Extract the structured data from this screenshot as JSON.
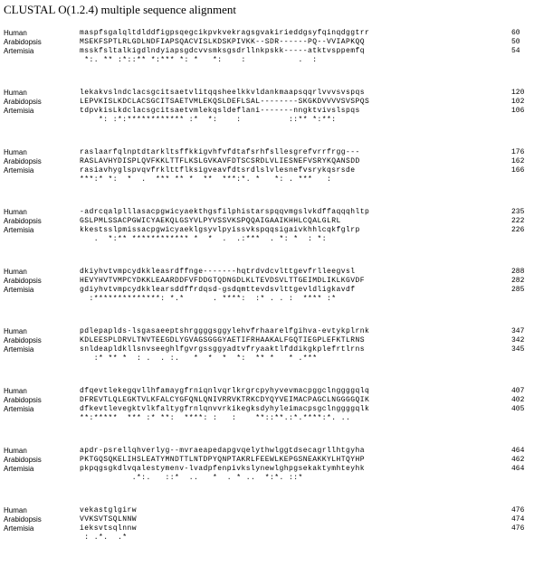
{
  "title": "CLUSTAL O(1.2.4) multiple sequence alignment",
  "highlight_colors": {
    "green": "#2fd62f",
    "yellow": "#ffff40",
    "magenta": "#d633d6",
    "red": "#e01b1b",
    "cyan": "#33cccc"
  },
  "blocks": [
    {
      "rows": [
        {
          "name": "Human",
          "seq": "maspfsgalqltdlddfigpsqegcikpvkvekragsgvakirieddgsyfqinqdggtrr",
          "num": "60"
        },
        {
          "name": "Arabidopsis",
          "seq": "MSEKFSPTLRLGDLNDFIAPSQACVISLKDSKPIVKK--SDR------PQ--VVIAPKQQ",
          "num": "50"
        },
        {
          "name": "Artemisia",
          "seq": "msskfsltalkigdlndyiapsgdcvvsmksgsdrllnkpskk-----atktvsppemfq",
          "num": "54"
        }
      ],
      "cons": " *:. ** :*::** *:*** *: *   *:    :           .  :  "
    },
    {
      "rows": [
        {
          "name": "Human",
          "seq": "lekakvslndclacsgcitsaetvlitqqsheelkkvldankmaapsqqrlvvvsvspqs",
          "num": "120"
        },
        {
          "name": "Arabidopsis",
          "seq": "LEPVKISLKDCLACSGCITSAETVMLEKQSLDEFLSAL--------SKGKDVVVVSVSPQS",
          "num": "102"
        },
        {
          "name": "Artemisia",
          "seq": "tdpvkisLkdclacsgcitsaetvmlekqsldeflani-------nngktvivslspqs",
          "num": "106"
        }
      ],
      "cons": "    *: :*:************ :*  *:    :          ::** *:**:"
    },
    {
      "rows": [
        {
          "name": "Human",
          "seq": "raslaarfqlnptdtarkltsffkkigvhfvfdtafsrhfsllesgrefvrrfrgg---",
          "num": "176"
        },
        {
          "name": "Arabidopsis",
          "seq": "RASLAVHYDISPLQVFKKLTTFLKSLGVKAVFDTSCSRDLVLIESNEFVSRYKQANSDD",
          "num": "162"
        },
        {
          "name": "Artemisia",
          "seq": "rasiavhyglspvqvfrklttflksigveavfdtsrdlslvlesnefvsrykqsrsde",
          "num": "166"
        }
      ],
      "cons": "***:* *:  *  .  *** ** *  **  ***:*. *   *: . ***   :"
    },
    {
      "rows": [
        {
          "name": "Human",
          "seq": "-adrcqalplllasacpgwicyaekthgsfilphistarspqqvmgslvkdffaqqqhltp",
          "num": "235"
        },
        {
          "name": "Arabidopsis",
          "seq": "GSLPMLSSACPGWICYAEKQLGSYVLPYVSSVKSPQQAIGAAIKHHLCQALGLRL",
          "num": "222"
        },
        {
          "name": "Artemisia",
          "seq": "kkestsslpmissacpgwicyaeklgsyvlpyissvkspqqsigaivkhhlcqkfglrp",
          "num": "226"
        }
      ],
      "cons": "   .  *:** ************ *  *  .  .:***  . *: *  : *:"
    },
    {
      "rows": [
        {
          "name": "Human",
          "seq": "dkiyhvtvmpcydkkleasrdffnge-------hqtrdvdcvlttgevfrlleegvsl",
          "num": "288"
        },
        {
          "name": "Arabidopsis",
          "seq": "HEVYHVTVMPCYDKKLEAARDDFVFDDGTQDNGDLKLTEVDSVLTTGEIMDLIKLKGVDF",
          "num": "282"
        },
        {
          "name": "Artemisia",
          "seq": "gdiyhvtvmpcydkklearsddffrdqsd-gsdqmttevdsvlttgevldligkavdf",
          "num": "285"
        }
      ],
      "cons": "  :**************: *.*      . ****:  :* . . :  **** :*"
    },
    {
      "rows": [
        {
          "name": "Human",
          "seq": "pdlepaplds-lsgasaeeptshrggggsggylehvfrhaarelfgihva-evtykplrnk",
          "num": "347"
        },
        {
          "name": "Arabidopsis",
          "seq": "KDLEESPLDRVLTNVTEEGDLYGVAGSGGGYAETIFRHAAKALFGQTIEGPLEFKTLRNS",
          "num": "342"
        },
        {
          "name": "Artemisia",
          "seq": "snldeapldkllsnvseeghlfgvrgssggyadtvfryaaktlfddikgkplefrtlrns",
          "num": "345"
        }
      ],
      "cons": "   :* ** *  : .  . :.   *  *  *  *:  ** *   * .*** "
    },
    {
      "rows": [
        {
          "name": "Human",
          "seq": "dfqevtlekegqvllhfamaygfrniqnlvqrlkrgrcpyhyvevmacpggclnggggqlq",
          "num": "407"
        },
        {
          "name": "Arabidopsis",
          "seq": "DFREVTLQLEGKTVLKFALCYGFQNLQNIVRRVKTRKCDYQYVEIMACPAGCLNGGGGQIK",
          "num": "402"
        },
        {
          "name": "Artemisia",
          "seq": "dfkevtlevegktvlkfaltygfrnlqnvvrkikegksdyhyleimacpsgclnggggqlk",
          "num": "405"
        }
      ],
      "cons": "**:*****  *** :* **:  ****: :   :    **::**.:*.****:*. .."
    },
    {
      "rows": [
        {
          "name": "Human",
          "seq": "apdr-psrellqhverlyg--mvraeapedapgvqelythwlggtdsecagrllhtgyha",
          "num": "464"
        },
        {
          "name": "Arabidopsis",
          "seq": "PKTGQSQKELIHSLEATYMNDTTLNTDPYQNPTAKRLFEEWLKEPGSNEAKKYLHTQYHP",
          "num": "462"
        },
        {
          "name": "Artemisia",
          "seq": "pkpqgsgkdlvqalestymenv-lvadpfenpivkslynewlghpgsekaktymhteyhk",
          "num": "464"
        }
      ],
      "cons": "           .*:.   ::*  ..   *  . * ..  *:*. ::*"
    },
    {
      "rows": [
        {
          "name": "Human",
          "seq": "vekastglgirw",
          "num": "476"
        },
        {
          "name": "Arabidopsis",
          "seq": "VVKSVTSQLNNW",
          "num": "474"
        },
        {
          "name": "Artemisia",
          "seq": "ieksvtsqlnnw",
          "num": "476"
        }
      ],
      "cons": " : .*.  .*"
    }
  ]
}
